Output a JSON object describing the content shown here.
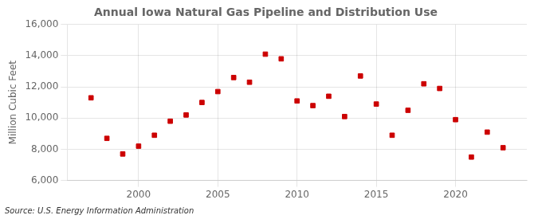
{
  "chart_data": {
    "type": "scatter",
    "title": "Annual Iowa Natural Gas Pipeline and Distribution Use",
    "ylabel": "Million Cubic Feet",
    "annotations": [
      "Source: U.S. Energy Information Administration"
    ],
    "x": [
      1997,
      1998,
      1999,
      2000,
      2001,
      2002,
      2003,
      2004,
      2005,
      2006,
      2007,
      2008,
      2009,
      2010,
      2011,
      2012,
      2013,
      2014,
      2015,
      2016,
      2017,
      2018,
      2019,
      2020,
      2021,
      2022,
      2023
    ],
    "values": [
      11300,
      8700,
      7700,
      8200,
      8900,
      9800,
      10200,
      11000,
      11700,
      12600,
      12300,
      14100,
      13800,
      11100,
      10800,
      11400,
      10100,
      12700,
      10900,
      8900,
      10500,
      12200,
      11900,
      9900,
      7500,
      9100,
      8100
    ],
    "color": "#cc0000",
    "marker": "square",
    "xlim": [
      1995.5,
      2024.5
    ],
    "xticks": [
      2000,
      2005,
      2010,
      2015,
      2020
    ],
    "ylim": [
      6000,
      16000
    ],
    "yticks": [
      {
        "value": 6000,
        "label": "6,000"
      },
      {
        "value": 8000,
        "label": "8,000"
      },
      {
        "value": 10000,
        "label": "10,000"
      },
      {
        "value": 12000,
        "label": "12,000"
      },
      {
        "value": 14000,
        "label": "14,000"
      },
      {
        "value": 16000,
        "label": "16,000"
      }
    ],
    "grid": true
  }
}
